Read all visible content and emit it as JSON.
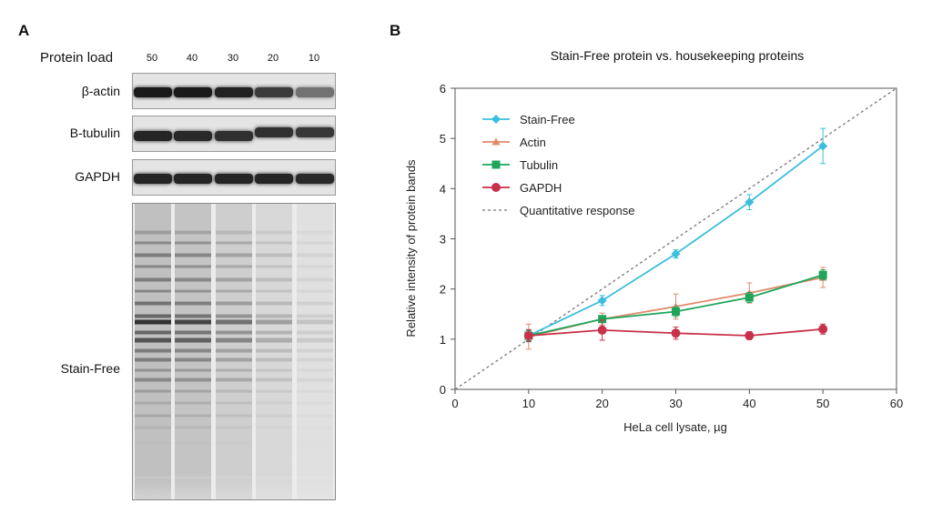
{
  "panel_a": {
    "letter": "A",
    "protein_load_label": "Protein load",
    "loads": [
      "50",
      "40",
      "30",
      "20",
      "10"
    ],
    "rows": [
      {
        "label": "β-actin",
        "band_strength": [
          0.95,
          0.95,
          0.92,
          0.8,
          0.55
        ]
      },
      {
        "label": "B-tubulin",
        "band_strength": [
          0.9,
          0.88,
          0.85,
          0.85,
          0.82
        ]
      },
      {
        "label": "GAPDH",
        "band_strength": [
          0.9,
          0.9,
          0.9,
          0.9,
          0.88
        ]
      }
    ],
    "gel_label": "Stain-Free",
    "gel_lane_strength": [
      1.0,
      0.9,
      0.65,
      0.4,
      0.2
    ]
  },
  "panel_b": {
    "letter": "B"
  },
  "chart_data": {
    "type": "line",
    "title": "Stain-Free protein vs. housekeeping proteins",
    "xlabel": "HeLa cell lysate, µg",
    "ylabel": "Relative intensity of protein bands",
    "xlim": [
      0,
      60
    ],
    "ylim": [
      0,
      6
    ],
    "xticks": [
      0,
      10,
      20,
      30,
      40,
      50,
      60
    ],
    "yticks": [
      0,
      1,
      2,
      3,
      4,
      5,
      6
    ],
    "x": [
      10,
      20,
      30,
      40,
      50
    ],
    "legend_position": "top-left",
    "series": [
      {
        "name": "Stain-Free",
        "values": [
          1.07,
          1.77,
          2.7,
          3.73,
          4.85
        ],
        "errors": [
          0.12,
          0.1,
          0.08,
          0.15,
          0.35
        ],
        "color": "#3bbfdc",
        "marker": "diamond"
      },
      {
        "name": "Actin",
        "values": [
          1.05,
          1.4,
          1.65,
          1.92,
          2.23
        ],
        "errors": [
          0.25,
          0.12,
          0.25,
          0.2,
          0.2
        ],
        "color": "#e08a6a",
        "marker": "triangle"
      },
      {
        "name": "Tubulin",
        "values": [
          1.07,
          1.4,
          1.55,
          1.83,
          2.28
        ],
        "errors": [
          0.1,
          0.06,
          0.1,
          0.1,
          0.1
        ],
        "color": "#1fa55a",
        "marker": "square"
      },
      {
        "name": "GAPDH",
        "values": [
          1.07,
          1.18,
          1.12,
          1.07,
          1.2
        ],
        "errors": [
          0.12,
          0.2,
          0.12,
          0.08,
          0.1
        ],
        "color": "#c8314a",
        "marker": "circle"
      }
    ],
    "reference_line": {
      "name": "Quantitative response",
      "from": [
        0,
        0
      ],
      "to": [
        60,
        6
      ],
      "color": "#777777"
    }
  }
}
